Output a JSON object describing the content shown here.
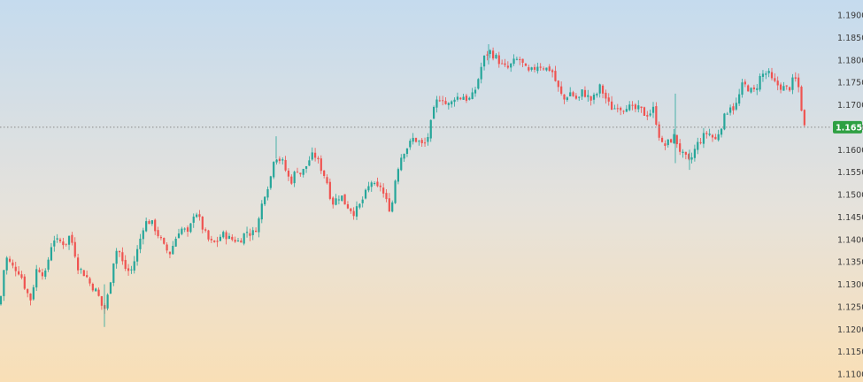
{
  "chart_data": {
    "type": "candlestick",
    "title": "",
    "xlabel": "",
    "ylabel": "",
    "ylim": [
      1.11,
      1.191
    ],
    "y_ticks": [
      "1.1900",
      "1.1850",
      "1.1800",
      "1.1750",
      "1.1700",
      "1.1650",
      "1.1600",
      "1.1550",
      "1.1500",
      "1.1450",
      "1.1400",
      "1.1350",
      "1.1300",
      "1.1250",
      "1.1200",
      "1.1150",
      "1.1100"
    ],
    "current_price": "1.1650",
    "current_price_value": 1.165,
    "grid": false,
    "colors": {
      "up": "#26a69a",
      "down": "#ef5350",
      "price_tag": "#2ea043",
      "price_line": "#888888",
      "axis_text": "#3b3b3b"
    },
    "close_path": [
      [
        0,
        1.1255
      ],
      [
        4,
        1.133
      ],
      [
        8,
        1.136
      ],
      [
        13,
        1.134
      ],
      [
        18,
        1.1335
      ],
      [
        23,
        1.1325
      ],
      [
        27,
        1.13
      ],
      [
        31,
        1.128
      ],
      [
        35,
        1.1265
      ],
      [
        38,
        1.13
      ],
      [
        42,
        1.134
      ],
      [
        46,
        1.133
      ],
      [
        51,
        1.132
      ],
      [
        56,
        1.137
      ],
      [
        60,
        1.1405
      ],
      [
        64,
        1.1395
      ],
      [
        69,
        1.1395
      ],
      [
        74,
        1.139
      ],
      [
        79,
        1.141
      ],
      [
        84,
        1.1375
      ],
      [
        88,
        1.134
      ],
      [
        92,
        1.133
      ],
      [
        97,
        1.132
      ],
      [
        102,
        1.13
      ],
      [
        107,
        1.129
      ],
      [
        112,
        1.127
      ],
      [
        117,
        1.124
      ],
      [
        120,
        1.1255
      ],
      [
        124,
        1.13
      ],
      [
        128,
        1.135
      ],
      [
        133,
        1.1385
      ],
      [
        138,
        1.135
      ],
      [
        143,
        1.133
      ],
      [
        148,
        1.133
      ],
      [
        153,
        1.136
      ],
      [
        157,
        1.139
      ],
      [
        162,
        1.143
      ],
      [
        166,
        1.144
      ],
      [
        170,
        1.144
      ],
      [
        175,
        1.1425
      ],
      [
        180,
        1.1405
      ],
      [
        186,
        1.138
      ],
      [
        192,
        1.137
      ],
      [
        197,
        1.1395
      ],
      [
        202,
        1.142
      ],
      [
        207,
        1.1425
      ],
      [
        212,
        1.141
      ],
      [
        217,
        1.144
      ],
      [
        220,
        1.147
      ],
      [
        225,
        1.1445
      ],
      [
        230,
        1.142
      ],
      [
        235,
        1.14
      ],
      [
        240,
        1.139
      ],
      [
        245,
        1.1395
      ],
      [
        250,
        1.141
      ],
      [
        255,
        1.141
      ],
      [
        260,
        1.14
      ],
      [
        265,
        1.14
      ],
      [
        270,
        1.1395
      ],
      [
        275,
        1.141
      ],
      [
        280,
        1.142
      ],
      [
        284,
        1.141
      ],
      [
        288,
        1.142
      ],
      [
        292,
        1.144
      ],
      [
        296,
        1.148
      ],
      [
        300,
        1.151
      ],
      [
        305,
        1.153
      ],
      [
        310,
        1.159
      ],
      [
        315,
        1.158
      ],
      [
        320,
        1.157
      ],
      [
        325,
        1.154
      ],
      [
        330,
        1.153
      ],
      [
        335,
        1.156
      ],
      [
        340,
        1.1545
      ],
      [
        345,
        1.156
      ],
      [
        350,
        1.158
      ],
      [
        355,
        1.159
      ],
      [
        360,
        1.157
      ],
      [
        365,
        1.155
      ],
      [
        370,
        1.1525
      ],
      [
        375,
        1.148
      ],
      [
        380,
        1.149
      ],
      [
        385,
        1.15
      ],
      [
        390,
        1.148
      ],
      [
        395,
        1.147
      ],
      [
        400,
        1.146
      ],
      [
        405,
        1.147
      ],
      [
        410,
        1.149
      ],
      [
        415,
        1.151
      ],
      [
        420,
        1.153
      ],
      [
        425,
        1.151
      ],
      [
        430,
        1.152
      ],
      [
        435,
        1.149
      ],
      [
        440,
        1.147
      ],
      [
        443,
        1.148
      ],
      [
        447,
        1.154
      ],
      [
        452,
        1.158
      ],
      [
        457,
        1.16
      ],
      [
        462,
        1.161
      ],
      [
        467,
        1.1625
      ],
      [
        472,
        1.162
      ],
      [
        477,
        1.161
      ],
      [
        481,
        1.1615
      ],
      [
        485,
        1.164
      ],
      [
        489,
        1.168
      ],
      [
        494,
        1.171
      ],
      [
        499,
        1.172
      ],
      [
        504,
        1.17
      ],
      [
        509,
        1.17
      ],
      [
        514,
        1.172
      ],
      [
        519,
        1.1715
      ],
      [
        524,
        1.172
      ],
      [
        529,
        1.171
      ],
      [
        534,
        1.172
      ],
      [
        538,
        1.174
      ],
      [
        543,
        1.178
      ],
      [
        548,
        1.181
      ],
      [
        553,
        1.182
      ],
      [
        558,
        1.181
      ],
      [
        563,
        1.18
      ],
      [
        568,
        1.1785
      ],
      [
        573,
        1.178
      ],
      [
        578,
        1.179
      ],
      [
        583,
        1.18
      ],
      [
        588,
        1.18
      ],
      [
        593,
        1.178
      ],
      [
        598,
        1.177
      ],
      [
        603,
        1.178
      ],
      [
        608,
        1.179
      ],
      [
        613,
        1.1785
      ],
      [
        618,
        1.178
      ],
      [
        623,
        1.178
      ],
      [
        628,
        1.175
      ],
      [
        633,
        1.1725
      ],
      [
        638,
        1.171
      ],
      [
        643,
        1.173
      ],
      [
        648,
        1.172
      ],
      [
        653,
        1.171
      ],
      [
        658,
        1.173
      ],
      [
        663,
        1.172
      ],
      [
        668,
        1.171
      ],
      [
        673,
        1.172
      ],
      [
        678,
        1.174
      ],
      [
        683,
        1.172
      ],
      [
        688,
        1.17
      ],
      [
        693,
        1.169
      ],
      [
        698,
        1.17
      ],
      [
        703,
        1.169
      ],
      [
        708,
        1.17
      ],
      [
        713,
        1.169
      ],
      [
        718,
        1.169
      ],
      [
        723,
        1.169
      ],
      [
        728,
        1.168
      ],
      [
        733,
        1.168
      ],
      [
        738,
        1.169
      ],
      [
        743,
        1.165
      ],
      [
        747,
        1.161
      ],
      [
        752,
        1.161
      ],
      [
        757,
        1.162
      ],
      [
        762,
        1.163
      ],
      [
        766,
        1.161
      ],
      [
        770,
        1.159
      ],
      [
        775,
        1.158
      ],
      [
        779,
        1.157
      ],
      [
        783,
        1.159
      ],
      [
        787,
        1.161
      ],
      [
        791,
        1.162
      ],
      [
        795,
        1.163
      ],
      [
        800,
        1.164
      ],
      [
        804,
        1.163
      ],
      [
        808,
        1.162
      ],
      [
        812,
        1.164
      ],
      [
        816,
        1.166
      ],
      [
        820,
        1.168
      ],
      [
        825,
        1.17
      ],
      [
        830,
        1.169
      ],
      [
        835,
        1.172
      ],
      [
        839,
        1.1745
      ],
      [
        844,
        1.174
      ],
      [
        849,
        1.173
      ],
      [
        853,
        1.173
      ],
      [
        858,
        1.176
      ],
      [
        863,
        1.177
      ],
      [
        868,
        1.177
      ],
      [
        873,
        1.175
      ],
      [
        878,
        1.1745
      ],
      [
        883,
        1.174
      ],
      [
        888,
        1.1735
      ],
      [
        893,
        1.174
      ],
      [
        897,
        1.176
      ],
      [
        901,
        1.175
      ],
      [
        904,
        1.172
      ],
      [
        907,
        1.1665
      ],
      [
        909,
        1.165
      ]
    ]
  }
}
